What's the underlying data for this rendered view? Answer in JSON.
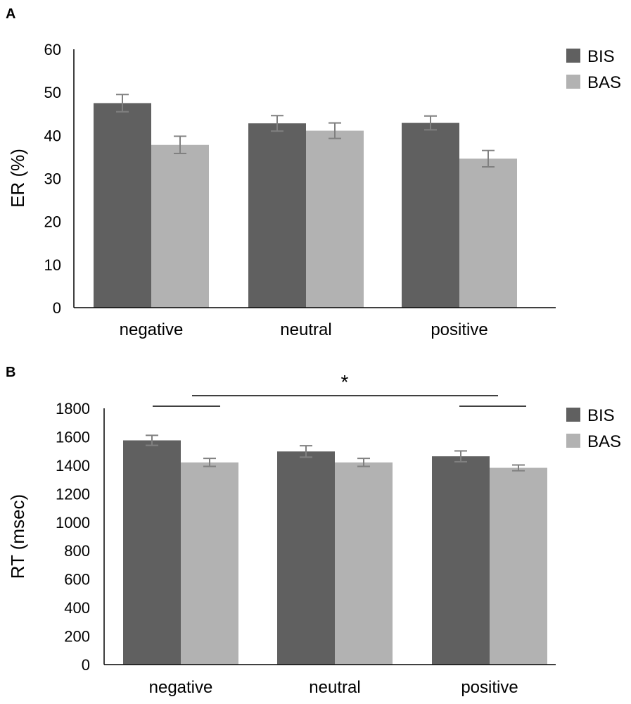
{
  "chart_data": [
    {
      "type": "bar",
      "panel_label": "A",
      "ylabel": "ER (%)",
      "xlabel": "",
      "categories": [
        "negative",
        "neutral",
        "positive"
      ],
      "series": [
        {
          "name": "BIS",
          "color": "#606060",
          "values": [
            47.5,
            42.8,
            42.9
          ],
          "errors": [
            2.0,
            1.8,
            1.6
          ]
        },
        {
          "name": "BAS",
          "color": "#b2b2b2",
          "values": [
            37.8,
            41.1,
            34.6
          ],
          "errors": [
            2.0,
            1.8,
            1.9
          ]
        }
      ],
      "ylim": [
        0,
        60
      ],
      "yticks": [
        "0",
        "10",
        "20",
        "30",
        "40",
        "50",
        "60"
      ],
      "grid": false,
      "legend": "top-right"
    },
    {
      "type": "bar",
      "panel_label": "B",
      "ylabel": "RT (msec)",
      "xlabel": "",
      "categories": [
        "negative",
        "neutral",
        "positive"
      ],
      "series": [
        {
          "name": "BIS",
          "color": "#606060",
          "values": [
            1575,
            1497,
            1463
          ],
          "errors": [
            35,
            40,
            38
          ]
        },
        {
          "name": "BAS",
          "color": "#b2b2b2",
          "values": [
            1420,
            1420,
            1382
          ],
          "errors": [
            28,
            28,
            20
          ]
        }
      ],
      "ylim": [
        0,
        1800
      ],
      "yticks": [
        "0",
        "200",
        "400",
        "600",
        "800",
        "1000",
        "1200",
        "1400",
        "1600",
        "1800"
      ],
      "grid": false,
      "legend": "top-right",
      "annotations": [
        {
          "type": "bracket",
          "from": "negative",
          "to": "negative"
        },
        {
          "type": "bracket",
          "from": "positive",
          "to": "positive"
        },
        {
          "type": "bracket",
          "from": "negative",
          "to": "positive"
        },
        {
          "type": "text",
          "text": "*"
        }
      ]
    }
  ]
}
